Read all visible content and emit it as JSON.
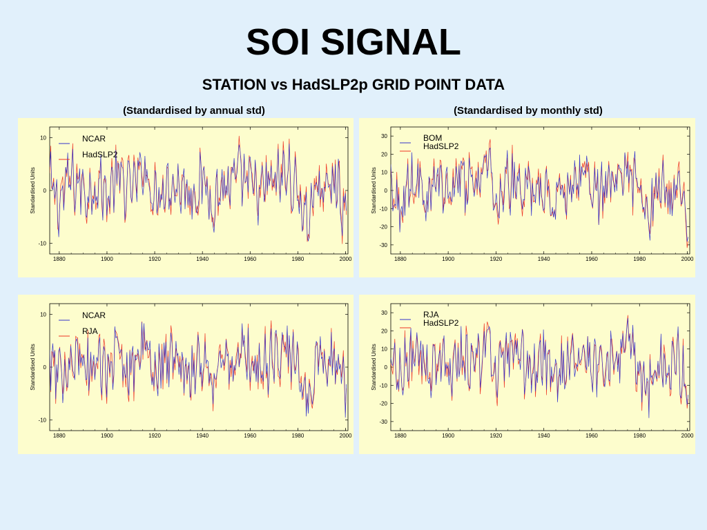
{
  "slide": {
    "title": "SOI SIGNAL",
    "subtitle": "STATION vs HadSLP2p GRID POINT DATA",
    "col_left": "(Standardised by annual std)",
    "col_right": "(Standardised by monthly std)"
  },
  "colors": {
    "blue": "#3333cc",
    "red": "#ee3322",
    "panel": "#fdfdcd",
    "background": "#e1f0fb"
  },
  "chart_data": [
    {
      "type": "line",
      "ylabel": "Standardised Units",
      "xlim": [
        1876,
        2001
      ],
      "ylim": [
        -12,
        12
      ],
      "xticks": [
        1880,
        1900,
        1920,
        1940,
        1960,
        1980,
        2000
      ],
      "yticks": [
        -10,
        0,
        10
      ],
      "legend": "top-left",
      "series": [
        {
          "name": "NCAR",
          "color": "#3333cc"
        },
        {
          "name": "HadSLP2",
          "color": "#ee3322"
        }
      ],
      "x": [
        1876,
        1880,
        1884,
        1888,
        1892,
        1896,
        1900,
        1904,
        1908,
        1912,
        1916,
        1920,
        1924,
        1928,
        1932,
        1936,
        1940,
        1944,
        1948,
        1952,
        1956,
        1960,
        1964,
        1968,
        1972,
        1976,
        1980,
        1984,
        1988,
        1992,
        1996,
        2000
      ],
      "values_approx": [
        3,
        -5,
        4,
        2,
        -1,
        3,
        -2,
        5,
        1,
        2,
        8,
        -3,
        3,
        2,
        1,
        -1,
        3,
        -4,
        1,
        2,
        5,
        2,
        -1,
        2,
        4,
        6,
        -1,
        -11,
        3,
        -1,
        4,
        -9
      ]
    },
    {
      "type": "line",
      "ylabel": "Standardised Units",
      "xlim": [
        1876,
        2001
      ],
      "ylim": [
        -35,
        35
      ],
      "xticks": [
        1880,
        1900,
        1920,
        1940,
        1960,
        1980,
        2000
      ],
      "yticks": [
        -30,
        -20,
        -10,
        0,
        10,
        20,
        30
      ],
      "legend": "top-left",
      "series": [
        {
          "name": "BOM",
          "color": "#3333cc"
        },
        {
          "name": "HadSLP2",
          "color": "#ee3322"
        }
      ],
      "x": [
        1876,
        1880,
        1884,
        1888,
        1892,
        1896,
        1900,
        1904,
        1908,
        1912,
        1916,
        1920,
        1924,
        1928,
        1932,
        1936,
        1940,
        1944,
        1948,
        1952,
        1956,
        1960,
        1964,
        1968,
        1972,
        1976,
        1980,
        1984,
        1988,
        1992,
        1996,
        2000
      ],
      "values_approx": [
        10,
        -15,
        12,
        5,
        -5,
        10,
        -8,
        15,
        3,
        5,
        28,
        -10,
        8,
        5,
        3,
        -3,
        10,
        -15,
        3,
        5,
        18,
        5,
        -5,
        5,
        12,
        22,
        -5,
        -30,
        10,
        -5,
        12,
        -25
      ]
    },
    {
      "type": "line",
      "ylabel": "Standardised Units",
      "xlim": [
        1876,
        2001
      ],
      "ylim": [
        -12,
        12
      ],
      "xticks": [
        1880,
        1900,
        1920,
        1940,
        1960,
        1980,
        2000
      ],
      "yticks": [
        -10,
        0,
        10
      ],
      "legend": "top-left",
      "series": [
        {
          "name": "NCAR",
          "color": "#3333cc"
        },
        {
          "name": "RJA",
          "color": "#ee3322"
        }
      ],
      "x": [
        1876,
        1880,
        1884,
        1888,
        1892,
        1896,
        1900,
        1904,
        1908,
        1912,
        1916,
        1920,
        1924,
        1928,
        1932,
        1936,
        1940,
        1944,
        1948,
        1952,
        1956,
        1960,
        1964,
        1968,
        1972,
        1976,
        1980,
        1984,
        1988,
        1992,
        1996,
        2000
      ],
      "values_approx": [
        3,
        -5,
        4,
        2,
        -1,
        3,
        -2,
        5,
        1,
        2,
        8,
        -3,
        3,
        2,
        1,
        -1,
        3,
        -4,
        1,
        2,
        5,
        2,
        -1,
        2,
        4,
        6,
        -1,
        -11,
        3,
        -1,
        4,
        -9
      ]
    },
    {
      "type": "line",
      "ylabel": "Standardised Units",
      "xlim": [
        1876,
        2001
      ],
      "ylim": [
        -35,
        35
      ],
      "xticks": [
        1880,
        1900,
        1920,
        1940,
        1960,
        1980,
        2000
      ],
      "yticks": [
        -30,
        -20,
        -10,
        0,
        10,
        20,
        30
      ],
      "legend": "top-left",
      "series": [
        {
          "name": "RJA",
          "color": "#3333cc"
        },
        {
          "name": "HadSLP2",
          "color": "#ee3322"
        }
      ],
      "x": [
        1876,
        1880,
        1884,
        1888,
        1892,
        1896,
        1900,
        1904,
        1908,
        1912,
        1916,
        1920,
        1924,
        1928,
        1932,
        1936,
        1940,
        1944,
        1948,
        1952,
        1956,
        1960,
        1964,
        1968,
        1972,
        1976,
        1980,
        1984,
        1988,
        1992,
        1996,
        2000
      ],
      "values_approx": [
        10,
        -15,
        12,
        5,
        -5,
        10,
        -8,
        15,
        3,
        5,
        28,
        -10,
        8,
        5,
        3,
        -3,
        10,
        -15,
        3,
        5,
        18,
        5,
        -5,
        5,
        12,
        22,
        -5,
        -30,
        10,
        -5,
        12,
        -25
      ]
    }
  ]
}
